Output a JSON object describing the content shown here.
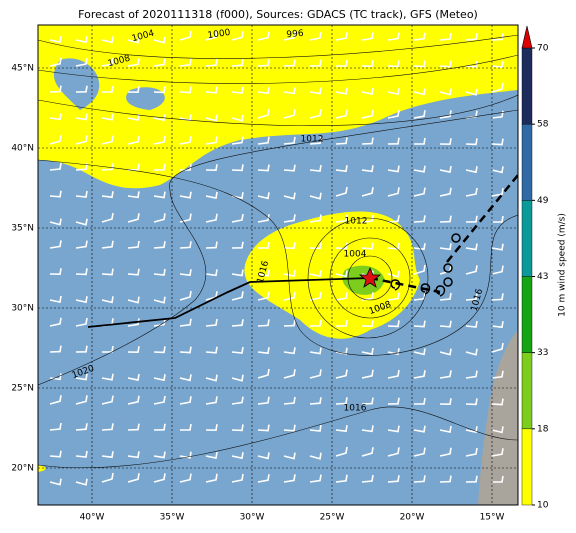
{
  "title": "Forecast of 2020111318 (f000), Sources: GDACS (TC track), GFS (Meteo)",
  "map": {
    "lonlim": [
      -43.375,
      -13.375
    ],
    "latlim": [
      17.6875,
      47.6875
    ],
    "xticks": [
      {
        "value": -40,
        "label": "40°W"
      },
      {
        "value": -35,
        "label": "35°W"
      },
      {
        "value": -30,
        "label": "30°W"
      },
      {
        "value": -25,
        "label": "25°W"
      },
      {
        "value": -20,
        "label": "20°W"
      },
      {
        "value": -15,
        "label": "15°W"
      }
    ],
    "yticks": [
      {
        "value": 45,
        "label": "45°N"
      },
      {
        "value": 40,
        "label": "40°N"
      },
      {
        "value": 35,
        "label": "35°N"
      },
      {
        "value": 30,
        "label": "30°N"
      },
      {
        "value": 25,
        "label": "25°N"
      },
      {
        "value": 20,
        "label": "20°N"
      }
    ],
    "grid": true,
    "isobar_labels": [
      "1004",
      "1000",
      "996",
      "1008",
      "1012",
      "1012",
      "1004",
      "1008",
      "1016",
      "1016",
      "1020",
      "1016"
    ]
  },
  "colorbar": {
    "label": "10 m wind speed (m/s)",
    "ticks": [
      10,
      18,
      33,
      43,
      49,
      58,
      70
    ],
    "colors": [
      "#ffff00",
      "#7ccd1c",
      "#14a514",
      "#0a9a9a",
      "#2f6aa6",
      "#1c2c5c"
    ],
    "extend_color": "#dd0000"
  }
}
